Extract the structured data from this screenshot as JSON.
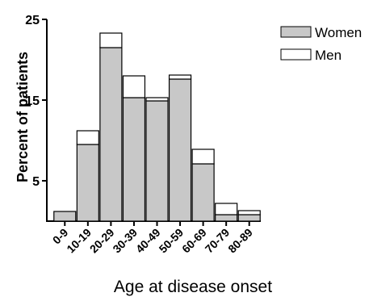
{
  "chart_data": {
    "type": "bar",
    "stacked": true,
    "categories": [
      "0-9",
      "10-19",
      "20-29",
      "30-39",
      "40-49",
      "50-59",
      "60-69",
      "70-79",
      "80-89"
    ],
    "series": [
      {
        "name": "Women",
        "values": [
          1.2,
          9.5,
          21.5,
          15.3,
          14.9,
          17.6,
          7.1,
          0.8,
          0.8
        ],
        "color": "#c8c8c8"
      },
      {
        "name": "Men",
        "values": [
          0.0,
          1.7,
          1.8,
          2.7,
          0.4,
          0.5,
          1.8,
          1.4,
          0.5
        ],
        "color": "#ffffff"
      }
    ],
    "xlabel": "Age at disease onset",
    "ylabel": "Percent of patients",
    "ylim": [
      0,
      25
    ],
    "yticks": [
      5,
      15,
      25
    ],
    "grid": false,
    "legend_position": "top-right"
  }
}
